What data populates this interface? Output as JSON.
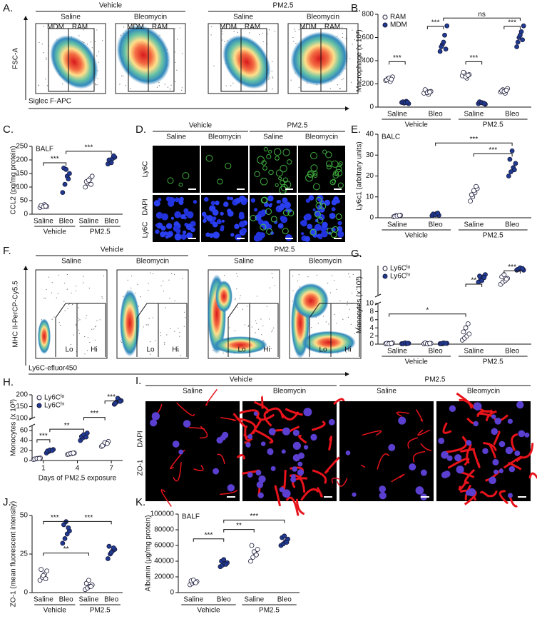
{
  "figure": {
    "A": {
      "label": "A.",
      "groups": [
        "Vehicle",
        "PM2.5"
      ],
      "conditions": [
        "Saline",
        "Bleomycin",
        "Saline",
        "Bleomycin"
      ],
      "gates": [
        "MDM",
        "RAM"
      ],
      "y_axis": "FSC-A",
      "x_axis": "Siglec F-APC"
    },
    "D": {
      "label": "D.",
      "groups": [
        "Vehicle",
        "PM2.5"
      ],
      "conditions": [
        "Saline",
        "Bleomycin",
        "Saline",
        "Bleomycin"
      ],
      "channels": [
        "Ly6C",
        "DAPI",
        "Ly6C"
      ]
    },
    "F": {
      "label": "F.",
      "groups": [
        "Vehicle",
        "PM2.5"
      ],
      "conditions": [
        "Saline",
        "Bleomycin",
        "Saline",
        "Bleomycin"
      ],
      "gates": [
        "Lo",
        "Hi"
      ],
      "y_axis": "MHC II-PerCP-Cy5.5",
      "x_axis": "Ly6C-efluor450"
    },
    "I": {
      "label": "I.",
      "groups": [
        "Vehicle",
        "PM2.5"
      ],
      "conditions": [
        "Saline",
        "Bleomycin",
        "Saline",
        "Bleomycin"
      ],
      "channels": [
        "ZO-1",
        "DAPI"
      ]
    }
  },
  "chart_data": [
    {
      "type": "strip",
      "panel_label": "B.",
      "y_label": "Macrophage (x 10³)",
      "ylim": [
        0,
        800
      ],
      "yticks": [
        0,
        200,
        400,
        600,
        800
      ],
      "categories": [
        "Saline",
        "Bleo",
        "Saline",
        "Bleo"
      ],
      "group_labels": [
        "Vehicle",
        "PM2.5"
      ],
      "series": [
        {
          "name": "RAM",
          "color": "#ffffff",
          "values": [
            [
              230,
              245,
              220,
              260,
              235,
              250,
              240
            ],
            [
              120,
              140,
              110,
              135,
              150,
              125,
              130
            ],
            [
              270,
              290,
              250,
              280,
              300,
              260,
              275
            ],
            [
              130,
              150,
              120,
              160,
              140,
              135,
              145
            ]
          ]
        },
        {
          "name": "MDM",
          "color": "#1f3a93",
          "values": [
            [
              40,
              35,
              50,
              30,
              45,
              38,
              42
            ],
            [
              480,
              540,
              620,
              700,
              520,
              560,
              500
            ],
            [
              30,
              40,
              35,
              25,
              45,
              38,
              32
            ],
            [
              520,
              600,
              650,
              700,
              560,
              620,
              580
            ]
          ]
        }
      ],
      "significance": [
        "***",
        "***",
        "***",
        "***",
        "ns"
      ]
    },
    {
      "type": "strip",
      "panel_label": "C.",
      "note": "BALF",
      "y_label": "CCL2 (pg/mg protein)",
      "ylim": [
        0,
        250
      ],
      "yticks": [
        0,
        50,
        100,
        150,
        200,
        250
      ],
      "categories": [
        "Saline",
        "Bleo",
        "Saline",
        "Bleo"
      ],
      "group_labels": [
        "Vehicle",
        "PM2.5"
      ],
      "colors": [
        "#ffffff",
        "#1f3a93",
        "#ffffff",
        "#1f3a93"
      ],
      "values": [
        [
          25,
          30,
          35,
          28,
          32,
          27,
          30
        ],
        [
          80,
          110,
          140,
          150,
          170,
          165,
          130
        ],
        [
          100,
          115,
          130,
          140,
          120,
          125,
          110
        ],
        [
          185,
          195,
          205,
          210,
          200,
          190,
          215
        ]
      ],
      "significance": [
        "***",
        "***"
      ]
    },
    {
      "type": "strip",
      "panel_label": "E.",
      "note": "BALC",
      "y_label": "Ly6c1 (arbitrary units)",
      "ylim": [
        0,
        40
      ],
      "yticks": [
        0,
        10,
        20,
        30,
        40
      ],
      "categories": [
        "Saline",
        "Bleo",
        "Saline",
        "Bleo"
      ],
      "group_labels": [
        "Vehicle",
        "PM2.5"
      ],
      "colors": [
        "#ffffff",
        "#1f3a93",
        "#ffffff",
        "#1f3a93"
      ],
      "values": [
        [
          0.5,
          1,
          0.8,
          1.2,
          0.6,
          0.9,
          1.1
        ],
        [
          1,
          1.5,
          2,
          1.2,
          1.8,
          1.4,
          2.2
        ],
        [
          8,
          10,
          12,
          14,
          11,
          13,
          15
        ],
        [
          20,
          22,
          24,
          26,
          28,
          32,
          23
        ]
      ],
      "significance": [
        "***",
        "***"
      ]
    },
    {
      "type": "strip",
      "panel_label": "G.",
      "y_label": "Monocytes (x 10³)",
      "ylim": [
        0,
        10
      ],
      "yticks": [
        0,
        2,
        4,
        6,
        8,
        10
      ],
      "upper_ylim": [
        10,
        50
      ],
      "categories": [
        "Saline",
        "Bleo",
        "Saline",
        "Bleo"
      ],
      "group_labels": [
        "Vehicle",
        "PM2.5"
      ],
      "series": [
        {
          "name": "Ly6Cˡᵒ",
          "color": "#ffffff",
          "values": [
            [
              0.1,
              0.2,
              0.1,
              0.3,
              0.2,
              0.1,
              0.2
            ],
            [
              0.1,
              0.2,
              0.1,
              0.2,
              0.3,
              0.1,
              0.2
            ],
            [
              1,
              1.5,
              2,
              2.5,
              3,
              4,
              5
            ],
            [
              25,
              28,
              30,
              33,
              35,
              38,
              32
            ]
          ]
        },
        {
          "name": "Ly6Cʰⁱ",
          "color": "#1f3a93",
          "values": [
            [
              0.1,
              0.2,
              0.1,
              0.2,
              0.1,
              0.3,
              0.2
            ],
            [
              0.1,
              0.1,
              0.2,
              0.2,
              0.1,
              0.3,
              0.2
            ],
            [
              28,
              32,
              35,
              38,
              36,
              30,
              34
            ],
            [
              44,
              45,
              46,
              44,
              45,
              47,
              46
            ]
          ]
        }
      ],
      "significance": [
        "*",
        "**",
        "***"
      ]
    },
    {
      "type": "strip",
      "panel_label": "H.",
      "y_label": "Monocytes (x 10³)",
      "ylim": [
        0,
        70
      ],
      "yticks": [
        0,
        20,
        40,
        60
      ],
      "upper_ylim": [
        100,
        200
      ],
      "upper_yticks": [
        100,
        150,
        200
      ],
      "x": [
        1,
        4,
        7
      ],
      "xlim": [
        0,
        8
      ],
      "xticks": [
        1,
        4,
        7
      ],
      "x_label": "Days of PM2.5 exposure",
      "series": [
        {
          "name": "Ly6Cˡᵒ",
          "color": "#ffffff",
          "values": [
            [
              2,
              3,
              4,
              5,
              3,
              4,
              4
            ],
            [
              12,
              13,
              14,
              15,
              13,
              14,
              15
            ],
            [
              28,
              32,
              35,
              38,
              30,
              36,
              34
            ]
          ]
        },
        {
          "name": "Ly6Cʰⁱ",
          "color": "#1f3a93",
          "values": [
            [
              15,
              18,
              20,
              22,
              19,
              21,
              20
            ],
            [
              40,
              45,
              50,
              55,
              48,
              52,
              47
            ],
            [
              160,
              170,
              180,
              175,
              165,
              185,
              172
            ]
          ]
        }
      ],
      "significance": [
        "***",
        "**",
        "***",
        "***"
      ]
    },
    {
      "type": "strip",
      "panel_label": "J.",
      "y_label": "ZO-1 (mean fluorescent intensity)",
      "ylim": [
        0,
        50
      ],
      "yticks": [
        0,
        25,
        50
      ],
      "categories": [
        "Saline",
        "Bleo",
        "Saline",
        "Bleo"
      ],
      "group_labels": [
        "Vehicle",
        "PM2.5"
      ],
      "colors": [
        "#ffffff",
        "#1f3a93",
        "#ffffff",
        "#1f3a93"
      ],
      "values": [
        [
          8,
          10,
          12,
          14,
          15,
          11,
          9
        ],
        [
          32,
          35,
          38,
          40,
          44,
          46,
          42
        ],
        [
          2,
          3,
          4,
          5,
          6,
          8,
          4
        ],
        [
          22,
          25,
          27,
          28,
          30,
          26,
          29
        ]
      ],
      "significance": [
        "***",
        "***",
        "**"
      ]
    },
    {
      "type": "strip",
      "panel_label": "K.",
      "note": "BALF",
      "y_label": "Albumin (μg/mg protein)",
      "ylim": [
        0,
        100000
      ],
      "yticks": [
        0,
        20000,
        40000,
        60000,
        80000,
        100000
      ],
      "categories": [
        "Saline",
        "Bleo",
        "Saline",
        "Bleo"
      ],
      "group_labels": [
        "Vehicle",
        "PM2.5"
      ],
      "colors": [
        "#ffffff",
        "#1f3a93",
        "#ffffff",
        "#1f3a93"
      ],
      "values": [
        [
          10000,
          12000,
          13000,
          14000,
          15000,
          16000,
          12500
        ],
        [
          33000,
          35000,
          37000,
          38000,
          40000,
          42000,
          36000
        ],
        [
          40000,
          45000,
          50000,
          55000,
          60000,
          52000,
          48000
        ],
        [
          60000,
          62000,
          65000,
          68000,
          70000,
          72000,
          64000
        ]
      ],
      "significance": [
        "***",
        "**",
        "***"
      ]
    }
  ]
}
